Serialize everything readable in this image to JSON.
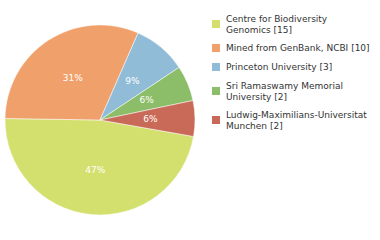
{
  "chart_data": {
    "type": "pie",
    "labels": [
      "Centre for Biodiversity\nGenomics [15]",
      "Mined from GenBank, NCBI [10]",
      "Princeton University [3]",
      "Sri Ramaswamy Memorial\nUniversity [2]",
      "Ludwig-Maximilians-Universitat\nMunchen [2]"
    ],
    "values": [
      47,
      31,
      9,
      6,
      6
    ],
    "value_labels": [
      "47%",
      "31%",
      "9%",
      "6%",
      "6%"
    ],
    "colors": [
      "#d4e06e",
      "#f0a06a",
      "#90bcd8",
      "#8cbd68",
      "#c96a58"
    ],
    "data_labels": true,
    "legend": "upper right"
  }
}
